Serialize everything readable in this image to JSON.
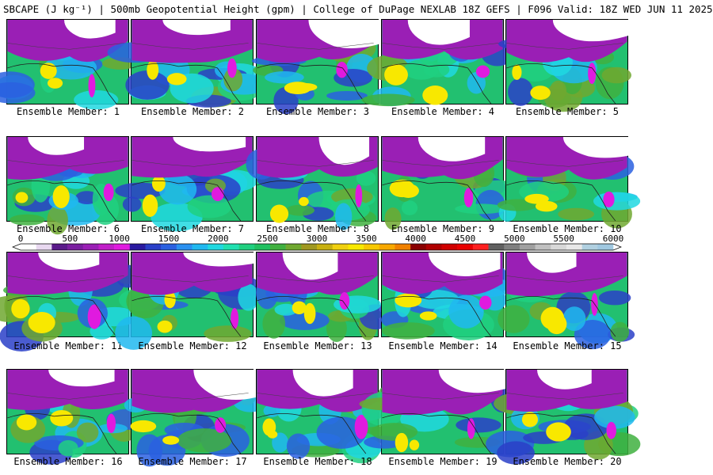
{
  "title": "SBCAPE (J kg⁻¹) | 500mb Geopotential Height (gpm) | College of DuPage NEXLAB 18Z GEFS | F096 Valid: 18Z WED JUN 11 2025",
  "label_prefix": "Ensemble Member: ",
  "members": [
    1,
    2,
    3,
    4,
    5,
    6,
    7,
    8,
    9,
    10,
    11,
    12,
    13,
    14,
    15,
    16,
    17,
    18,
    19,
    20
  ],
  "colorbar": {
    "min": 0,
    "max": 6000,
    "ticks": [
      0,
      500,
      1000,
      1500,
      2000,
      2500,
      3000,
      3500,
      4000,
      4500,
      5000,
      5500,
      6000
    ],
    "colors": [
      "#ffffff",
      "#e8d8f0",
      "#5a1a8a",
      "#7a1fa0",
      "#9a1fb5",
      "#c01ec8",
      "#e01adf",
      "#2a1aa0",
      "#2a40c8",
      "#2a60e0",
      "#2a90f0",
      "#20b8f0",
      "#20d8e0",
      "#20e0b0",
      "#20d080",
      "#20c060",
      "#40b040",
      "#70a830",
      "#a09820",
      "#c8b010",
      "#f0d010",
      "#f8e800",
      "#f8c800",
      "#f8a800",
      "#f08000",
      "#8a0000",
      "#b00000",
      "#d00000",
      "#e80000",
      "#ff2020",
      "#606060",
      "#808080",
      "#a0a0a0",
      "#c0c0c0",
      "#d8d8d8",
      "#e8e8e8",
      "#b0d0e0",
      "#a0c8e0"
    ]
  }
}
